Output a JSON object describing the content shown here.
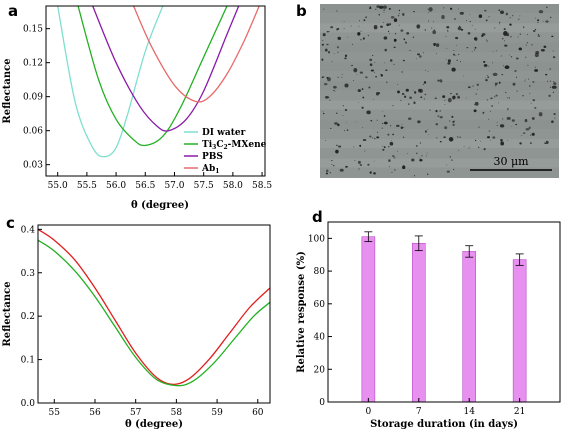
{
  "colors": {
    "di_water": "#7fdfcf",
    "mxene": "#22b022",
    "pbs": "#8a1aa8",
    "ab1": "#e86a6a",
    "red": "#e01e1e",
    "green": "#22b022",
    "bar_fill": "#e890f0",
    "bar_edge": "#b84ac4",
    "micrograph": "#8f9593"
  },
  "panel_labels": {
    "a": "a",
    "b": "b",
    "c": "c",
    "d": "d"
  },
  "micrograph": {
    "scale_label": "30 μm"
  },
  "chart_data": [
    {
      "id": "a",
      "type": "line",
      "xlabel": "θ (degree)",
      "ylabel": "Reflectance",
      "xlim": [
        54.8,
        58.55
      ],
      "ylim": [
        0.02,
        0.17
      ],
      "xticks": [
        "55.0",
        "55.5",
        "56.0",
        "56.5",
        "57.0",
        "57.5",
        "58.0",
        "58.5"
      ],
      "yticks": [
        "0.03",
        "0.06",
        "0.09",
        "0.12",
        "0.15"
      ],
      "legend_position": "bottom-right",
      "series": [
        {
          "name": "DI water",
          "x": [
            55.0,
            55.3,
            55.6,
            55.8,
            56.0,
            56.2,
            56.5,
            56.8
          ],
          "y": [
            0.17,
            0.085,
            0.045,
            0.037,
            0.045,
            0.075,
            0.13,
            0.17
          ]
        },
        {
          "name": "Ti3C2-MXene",
          "name_main": "Ti",
          "name_sub1": "3",
          "name_mid": "C",
          "name_sub2": "2",
          "name_tail": "-MXene",
          "x": [
            55.35,
            55.7,
            56.0,
            56.3,
            56.5,
            56.8,
            57.1,
            57.5,
            57.9
          ],
          "y": [
            0.17,
            0.105,
            0.07,
            0.052,
            0.047,
            0.055,
            0.08,
            0.125,
            0.17
          ]
        },
        {
          "name": "PBS",
          "x": [
            55.6,
            56.0,
            56.4,
            56.7,
            56.9,
            57.2,
            57.5,
            57.9,
            58.1
          ],
          "y": [
            0.17,
            0.12,
            0.082,
            0.064,
            0.06,
            0.07,
            0.095,
            0.145,
            0.17
          ]
        },
        {
          "name": "Ab1",
          "name_main": "Ab",
          "name_sub1": "1",
          "x": [
            56.3,
            56.6,
            57.0,
            57.35,
            57.6,
            57.9,
            58.2,
            58.45
          ],
          "y": [
            0.17,
            0.135,
            0.1,
            0.086,
            0.09,
            0.11,
            0.14,
            0.17
          ]
        }
      ]
    },
    {
      "id": "c",
      "type": "line",
      "xlabel": "θ (degree)",
      "ylabel": "Reflectance",
      "xlim": [
        54.6,
        60.3
      ],
      "ylim": [
        0.0,
        0.41
      ],
      "xticks": [
        "55",
        "56",
        "57",
        "58",
        "59",
        "60"
      ],
      "yticks": [
        "0.0",
        "0.1",
        "0.2",
        "0.3",
        "0.4"
      ],
      "series": [
        {
          "color_key": "red",
          "x": [
            54.6,
            55.0,
            55.5,
            56.0,
            56.5,
            57.0,
            57.5,
            57.9,
            58.3,
            58.8,
            59.3,
            59.8,
            60.3
          ],
          "y": [
            0.4,
            0.375,
            0.33,
            0.265,
            0.19,
            0.115,
            0.06,
            0.043,
            0.055,
            0.1,
            0.16,
            0.22,
            0.265
          ]
        },
        {
          "color_key": "green",
          "x": [
            54.6,
            55.0,
            55.5,
            56.0,
            56.5,
            57.0,
            57.5,
            58.0,
            58.4,
            58.9,
            59.4,
            59.9,
            60.3
          ],
          "y": [
            0.375,
            0.35,
            0.305,
            0.245,
            0.175,
            0.105,
            0.055,
            0.04,
            0.05,
            0.09,
            0.145,
            0.2,
            0.232
          ]
        }
      ]
    },
    {
      "id": "d",
      "type": "bar",
      "xlabel": "Storage duration (in days)",
      "ylabel": "Relative response (%)",
      "ylim": [
        0,
        110
      ],
      "yticks": [
        "0",
        "20",
        "40",
        "60",
        "80",
        "100"
      ],
      "categories": [
        "0",
        "7",
        "14",
        "21"
      ],
      "values": [
        101,
        97,
        92,
        87
      ],
      "errors": [
        3,
        4.5,
        3.5,
        3.5
      ]
    }
  ]
}
